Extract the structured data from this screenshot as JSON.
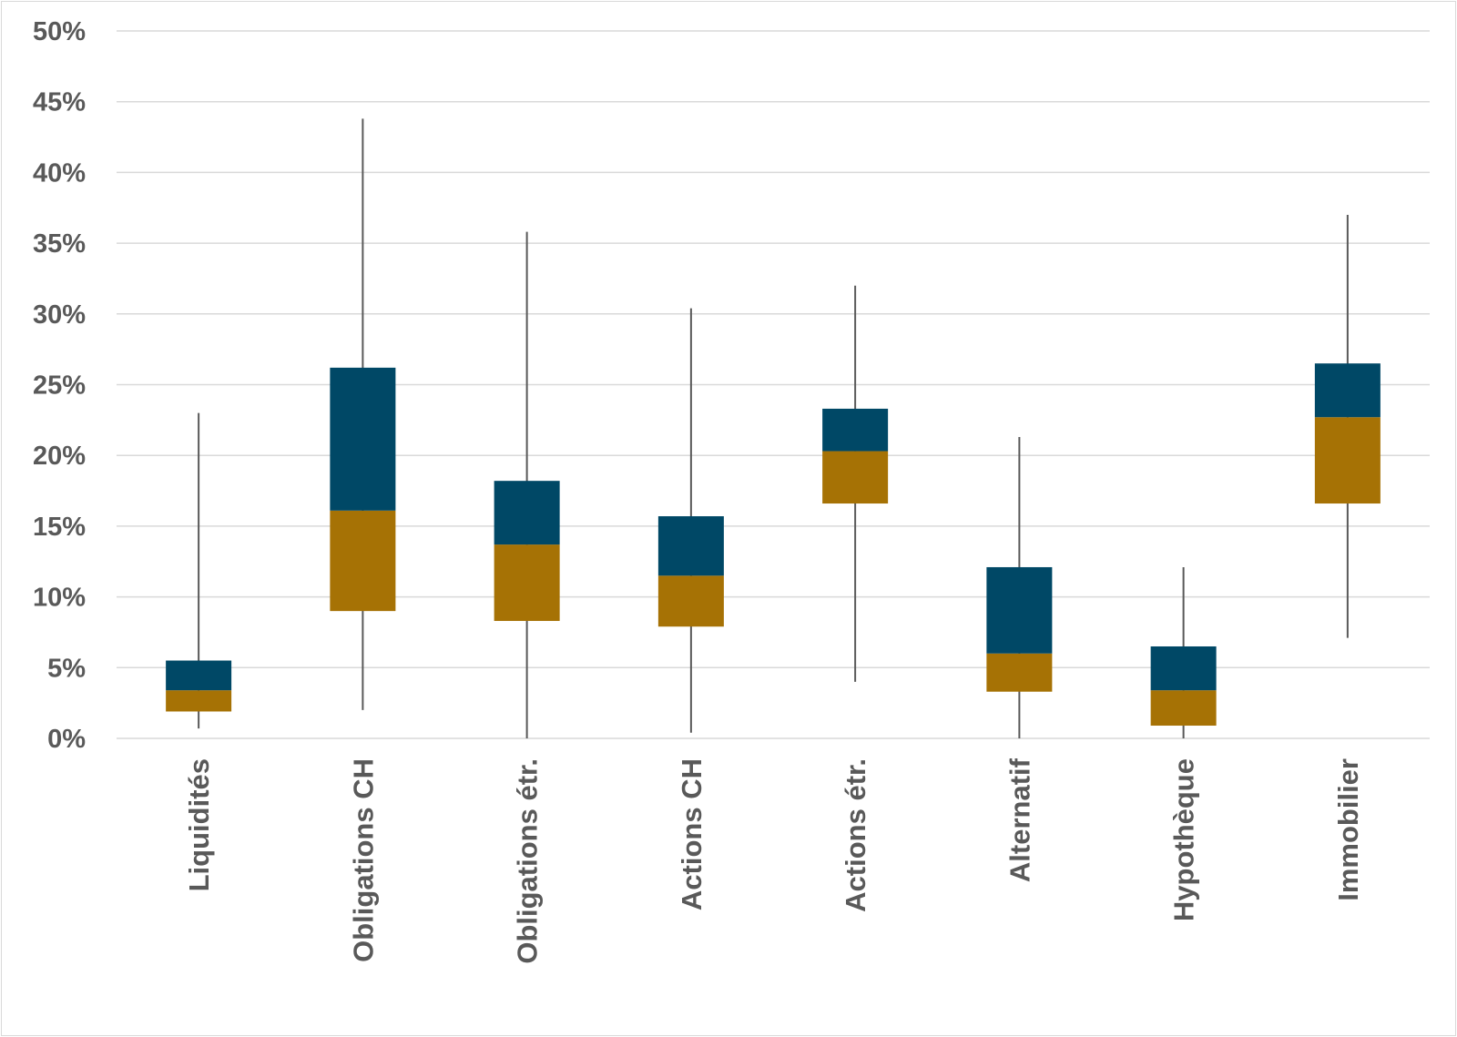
{
  "chart_data": {
    "type": "box",
    "categories": [
      "Liquidités",
      "Obligations CH",
      "Obligations étr.",
      "Actions CH",
      "Actions étr.",
      "Alternatif",
      "Hypothèque",
      "Immobilier"
    ],
    "series": [
      {
        "min": [
          0.7,
          2.0,
          0.0,
          0.4,
          4.0,
          0.0,
          0.0,
          7.1
        ],
        "q1": [
          1.9,
          9.0,
          8.3,
          7.9,
          16.6,
          3.3,
          0.9,
          16.6
        ],
        "median": [
          3.4,
          16.1,
          13.7,
          11.5,
          20.3,
          6.0,
          3.4,
          22.7
        ],
        "q3": [
          5.5,
          26.2,
          18.2,
          15.7,
          23.3,
          12.1,
          6.5,
          26.5
        ],
        "max": [
          23.0,
          43.8,
          35.8,
          30.4,
          32.0,
          21.3,
          12.1,
          37.0
        ]
      }
    ],
    "y_ticks": [
      "0%",
      "5%",
      "10%",
      "15%",
      "20%",
      "25%",
      "30%",
      "35%",
      "40%",
      "45%",
      "50%"
    ],
    "ylim": [
      0,
      50
    ],
    "grid": true,
    "colors": {
      "lower_box": "#A67205",
      "upper_box": "#004866",
      "whisker": "#595959",
      "grid": "#d9d9d9",
      "text": "#595959"
    }
  }
}
